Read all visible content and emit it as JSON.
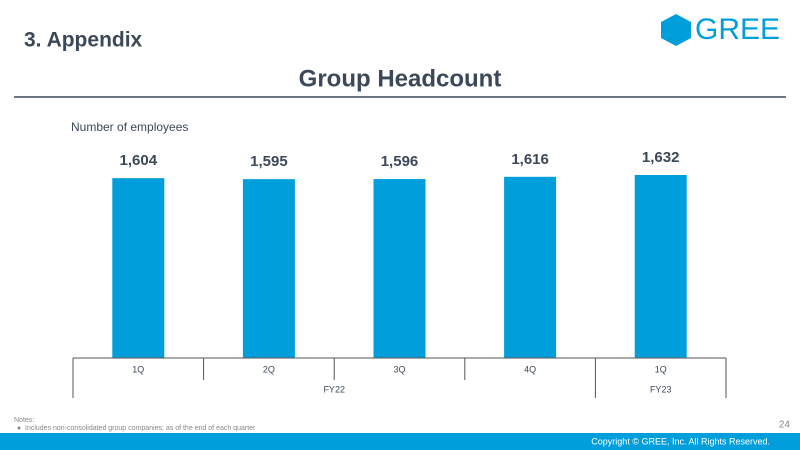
{
  "header": {
    "section": "3. Appendix",
    "logo": "GREE"
  },
  "chart_data": {
    "type": "bar",
    "title": "Group Headcount",
    "y_label": "Number of employees",
    "categories": [
      "1Q",
      "2Q",
      "3Q",
      "4Q",
      "1Q"
    ],
    "x_groups": [
      "FY22",
      "FY22",
      "FY22",
      "FY22",
      "FY23"
    ],
    "values": [
      1604,
      1595,
      1596,
      1616,
      1632
    ],
    "value_labels": [
      "1,604",
      "1,595",
      "1,596",
      "1,616",
      "1,632"
    ],
    "color": "#009fdb"
  },
  "footer": {
    "notes_title": "Notes:",
    "notes": [
      "Includes non-consolidated group companies; as of the end of each quarter"
    ],
    "page": "24",
    "copyright": "Copyright © GREE, Inc. All Rights Reserved."
  }
}
